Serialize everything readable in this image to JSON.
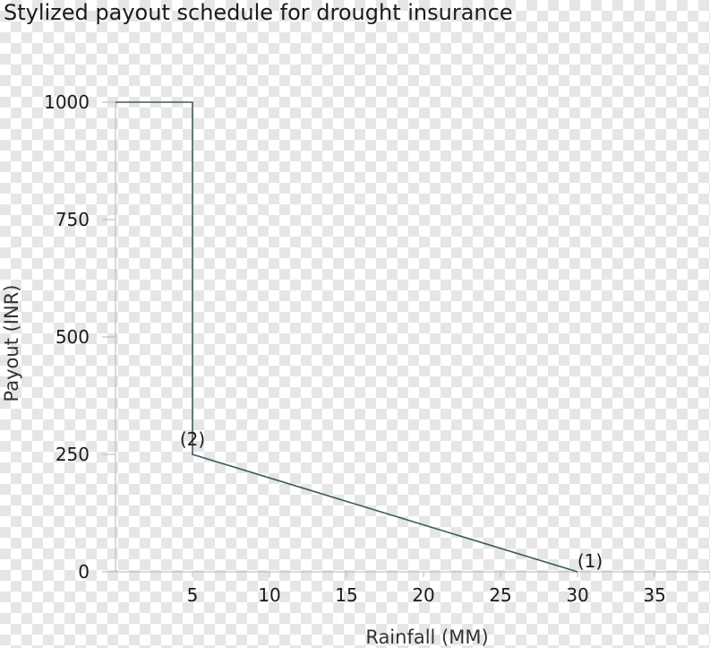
{
  "colors": {
    "series": "#3d5a62",
    "axis": "#b5b5b5"
  },
  "chart_data": {
    "type": "line",
    "title": "Stylized payout schedule for drought insurance",
    "xlabel": "Rainfall (MM)",
    "ylabel": "Payout (INR)",
    "xlim": [
      0,
      38.6
    ],
    "ylim": [
      0,
      1000
    ],
    "x_ticks": [
      5,
      10,
      15,
      20,
      25,
      30,
      35
    ],
    "x_tick_labels": [
      "5",
      "10",
      "15",
      "20",
      "25",
      "30",
      "35"
    ],
    "y_ticks": [
      0,
      250,
      500,
      750,
      1000
    ],
    "y_tick_labels": [
      "0",
      "250",
      "500",
      "750",
      "1000"
    ],
    "grid": false,
    "series": [
      {
        "x": [
          0,
          5,
          5,
          30
        ],
        "y": [
          1000,
          1000,
          250,
          0
        ]
      }
    ],
    "annotations": [
      {
        "text": "(2)",
        "x": 5,
        "y": 250
      },
      {
        "text": "(1)",
        "x": 30,
        "y": 0
      }
    ]
  }
}
